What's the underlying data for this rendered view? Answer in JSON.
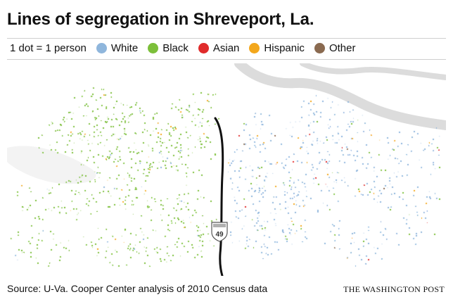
{
  "title": "Lines of segregation in Shreveport, La.",
  "legend": {
    "scale_label": "1 dot = 1 person",
    "entries": [
      {
        "label": "White",
        "color": "#8fb6dc"
      },
      {
        "label": "Black",
        "color": "#7cbf3a"
      },
      {
        "label": "Asian",
        "color": "#e02b2b"
      },
      {
        "label": "Hispanic",
        "color": "#f3a71c"
      },
      {
        "label": "Other",
        "color": "#8a6a50"
      }
    ]
  },
  "map": {
    "highway_shield": "49",
    "highway_icon": "interstate-shield-icon",
    "river_color": "#dcdcdc",
    "divider_line_color": "#111111"
  },
  "footer": {
    "source": "Source: U-Va. Cooper Center analysis of 2010 Census data",
    "credit": "THE WASHINGTON POST"
  }
}
